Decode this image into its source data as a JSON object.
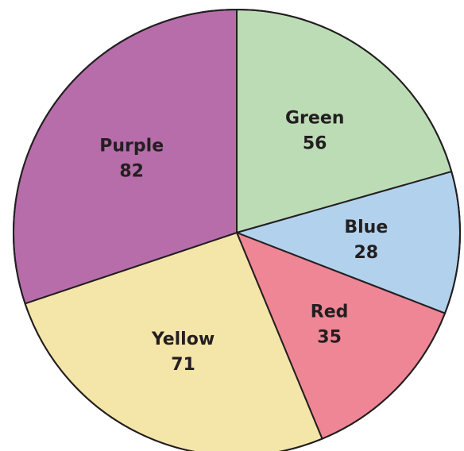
{
  "chart_data": {
    "type": "pie",
    "title": "",
    "slices": [
      {
        "label": "Green",
        "value": 56,
        "color": "#bcdcb6"
      },
      {
        "label": "Blue",
        "value": 28,
        "color": "#b2d1ec"
      },
      {
        "label": "Red",
        "value": 35,
        "color": "#ee8695"
      },
      {
        "label": "Yellow",
        "value": 71,
        "color": "#f4e5a8"
      },
      {
        "label": "Purple",
        "value": 82,
        "color": "#b66daa"
      }
    ],
    "start": "12 o'clock",
    "direction": "clockwise",
    "labels_inside": true,
    "legend": "none"
  }
}
